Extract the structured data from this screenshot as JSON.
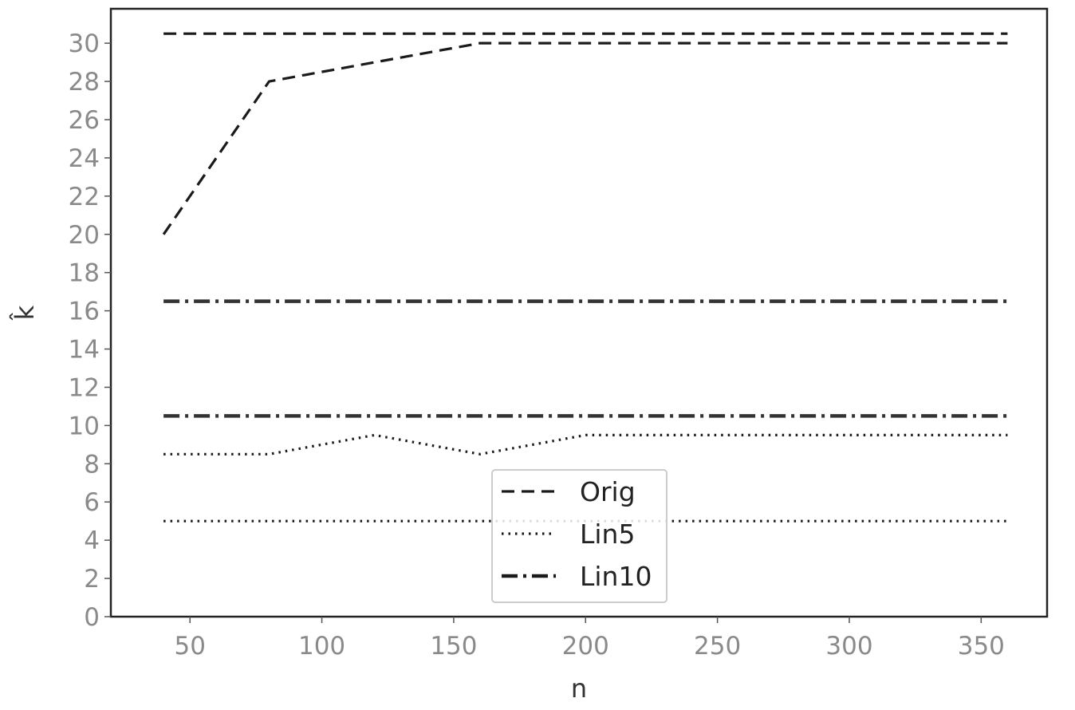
{
  "chart_data": {
    "type": "line",
    "xlabel": "n",
    "ylabel": "k̂",
    "xlim": [
      20,
      375
    ],
    "ylim": [
      0,
      31.8
    ],
    "xticks": [
      50,
      100,
      150,
      200,
      250,
      300,
      350
    ],
    "yticks": [
      0,
      2,
      4,
      6,
      8,
      10,
      12,
      14,
      16,
      18,
      20,
      22,
      24,
      26,
      28,
      30
    ],
    "grid": false,
    "legend_position": "bottom-center",
    "legend": [
      {
        "label": "Orig",
        "style": "dashed"
      },
      {
        "label": "Lin5",
        "style": "dotted"
      },
      {
        "label": "Lin10",
        "style": "dashdot"
      }
    ],
    "series": [
      {
        "style": "dashed",
        "color": "#1a1a1a",
        "x": [
          40,
          80,
          120,
          160,
          200,
          240,
          280,
          320,
          360
        ],
        "y": [
          20,
          28,
          29,
          30,
          30,
          30,
          30,
          30,
          30
        ]
      },
      {
        "style": "dashed",
        "color": "#1a1a1a",
        "x": [
          40,
          80,
          120,
          160,
          200,
          240,
          280,
          320,
          360
        ],
        "y": [
          30.5,
          30.5,
          30.5,
          30.5,
          30.5,
          30.5,
          30.5,
          30.5,
          30.5
        ]
      },
      {
        "style": "dotted",
        "color": "#1a1a1a",
        "x": [
          40,
          80,
          120,
          160,
          200,
          240,
          280,
          320,
          360
        ],
        "y": [
          8.5,
          8.5,
          9.5,
          8.5,
          9.5,
          9.5,
          9.5,
          9.5,
          9.5
        ]
      },
      {
        "style": "dotted",
        "color": "#1a1a1a",
        "x": [
          40,
          80,
          120,
          160,
          200,
          240,
          280,
          320,
          360
        ],
        "y": [
          5,
          5,
          5,
          5,
          5,
          5,
          5,
          5,
          5
        ]
      },
      {
        "style": "dashdot",
        "color": "#333333",
        "x": [
          40,
          80,
          120,
          160,
          200,
          240,
          280,
          320,
          360
        ],
        "y": [
          16.5,
          16.5,
          16.5,
          16.5,
          16.5,
          16.5,
          16.5,
          16.5,
          16.5
        ]
      },
      {
        "style": "dashdot",
        "color": "#333333",
        "x": [
          40,
          80,
          120,
          160,
          200,
          240,
          280,
          320,
          360
        ],
        "y": [
          10.5,
          10.5,
          10.5,
          10.5,
          10.5,
          10.5,
          10.5,
          10.5,
          10.5
        ]
      }
    ]
  }
}
